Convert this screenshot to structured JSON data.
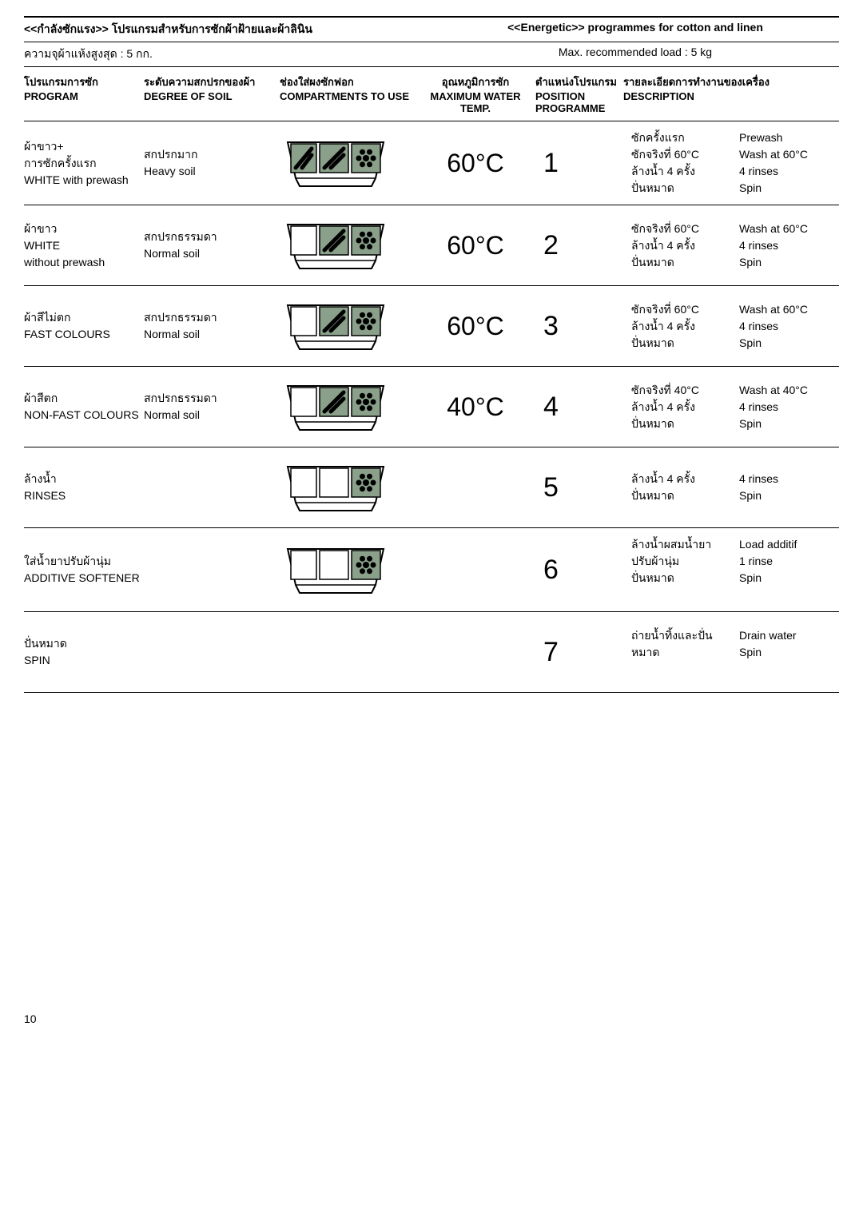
{
  "header": {
    "left_th": "<<กำลังซักแรง>>  โปรแกรมสำหรับการซักผ้าฝ้ายและผ้าลินิน",
    "right_en": "<<Energetic>> programmes for cotton and linen"
  },
  "subheader": {
    "left": "ความจุผ้าแห้งสูงสุด : 5 กก.",
    "right": "Max. recommended load : 5 kg"
  },
  "columns": {
    "program_th": "โปรแกรมการซัก",
    "program_en": "PROGRAM",
    "soil_th": "ระดับความสกปรกของผ้า",
    "soil_en": "DEGREE OF SOIL",
    "comp_th": "ช่องใส่ผงซักฟอก",
    "comp_en": "COMPARTMENTS TO USE",
    "temp_th": "อุณหภูมิการซัก",
    "temp_en": "MAXIMUM WATER TEMP.",
    "pos_th": "ตำแหน่งโปรแกรม",
    "pos_en": "POSITION PROGRAMME",
    "desc_th": "รายละเอียดการทำงานของเครื่อง",
    "desc_en": "DESCRIPTION"
  },
  "rows": [
    {
      "program_th": "ผ้าขาว+\nการซักครั้งแรก",
      "program_en": "WHITE with prewash",
      "soil_th": "สกปรกมาก",
      "soil_en": "Heavy soil",
      "compartments": [
        true,
        true,
        true
      ],
      "temp": "60°C",
      "pos": "1",
      "desc_th": "ซักครั้งแรก\nซักจริงที่ 60°C\nล้างน้ำ 4 ครั้ง\nปั่นหมาด",
      "desc_en": "Prewash\nWash at 60°C\n4 rinses\nSpin"
    },
    {
      "program_th": "ผ้าขาว",
      "program_en": "WHITE\nwithout prewash",
      "soil_th": "สกปรกธรรมดา",
      "soil_en": "Normal soil",
      "compartments": [
        false,
        true,
        true
      ],
      "temp": "60°C",
      "pos": "2",
      "desc_th": "ซักจริงที่ 60°C\nล้างน้ำ 4 ครั้ง\nปั่นหมาด",
      "desc_en": "Wash at 60°C\n4 rinses\nSpin"
    },
    {
      "program_th": "ผ้าสีไม่ตก",
      "program_en": "FAST COLOURS",
      "soil_th": "สกปรกธรรมดา",
      "soil_en": "Normal soil",
      "compartments": [
        false,
        true,
        true
      ],
      "temp": "60°C",
      "pos": "3",
      "desc_th": "ซักจริงที่ 60°C\nล้างน้ำ 4 ครั้ง\nปั่นหมาด",
      "desc_en": "Wash at 60°C\n4 rinses\nSpin"
    },
    {
      "program_th": "ผ้าสีตก",
      "program_en": "NON-FAST COLOURS",
      "soil_th": "สกปรกธรรมดา",
      "soil_en": "Normal soil",
      "compartments": [
        false,
        true,
        true
      ],
      "temp": "40°C",
      "pos": "4",
      "desc_th": "ซักจริงที่ 40°C\nล้างน้ำ 4 ครั้ง\nปั่นหมาด",
      "desc_en": "Wash at 40°C\n4 rinses\nSpin"
    },
    {
      "program_th": "ล้างน้ำ",
      "program_en": "RINSES",
      "soil_th": "",
      "soil_en": "",
      "compartments": [
        false,
        false,
        true
      ],
      "temp": "",
      "pos": "5",
      "desc_th": "ล้างน้ำ 4 ครั้ง\nปั่นหมาด",
      "desc_en": "4 rinses\nSpin"
    },
    {
      "program_th": "ใส่น้ำยาปรับผ้านุ่ม",
      "program_en": "ADDITIVE SOFTENER",
      "soil_th": "",
      "soil_en": "",
      "compartments": [
        false,
        false,
        true
      ],
      "temp": "",
      "pos": "6",
      "desc_th": "ล้างน้ำผสมน้ำยาปรับผ้านุ่ม\nปั่นหมาด",
      "desc_en": "Load additif\n1 rinse\nSpin"
    },
    {
      "program_th": "ปั่นหมาด",
      "program_en": "SPIN",
      "soil_th": "",
      "soil_en": "",
      "compartments": null,
      "temp": "",
      "pos": "7",
      "desc_th": "ถ่ายน้ำทิ้งและปั่นหมาด",
      "desc_en": "Drain water\nSpin"
    }
  ],
  "page": "10",
  "style": {
    "font_family": "Arial, sans-serif",
    "text_color": "#000000",
    "bg_color": "#ffffff",
    "border_color": "#000000",
    "compartment_fill": "#8aa08a",
    "compartment_mark_color": "#000000"
  }
}
